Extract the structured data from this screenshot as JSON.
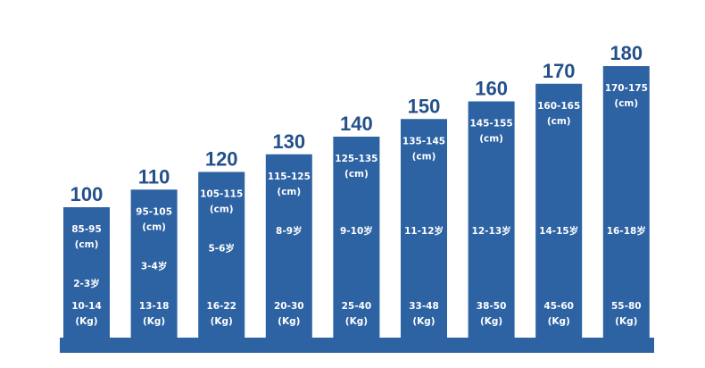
{
  "colors": {
    "bar": "#2d62a3",
    "base": "#2d62a3",
    "label": "#23508b",
    "bar_text": "#ffffff",
    "background": "#ffffff"
  },
  "chart_data": {
    "type": "bar",
    "categories": [
      "100",
      "110",
      "120",
      "130",
      "140",
      "150",
      "160",
      "170",
      "180"
    ],
    "values": [
      100,
      110,
      120,
      130,
      140,
      150,
      160,
      170,
      180
    ],
    "ylim": [
      0,
      180
    ],
    "grid": false,
    "legend": "none",
    "height_range": [
      "85-95",
      "95-105",
      "105-115",
      "115-125",
      "125-135",
      "135-145",
      "145-155",
      "160-165",
      "170-175"
    ],
    "height_unit": "(cm)",
    "age": [
      "2-3岁",
      "3-4岁",
      "5-6岁",
      "8-9岁",
      "9-10岁",
      "11-12岁",
      "12-13岁",
      "14-15岁",
      "16-18岁"
    ],
    "weight_range": [
      "10-14",
      "13-18",
      "16-22",
      "20-30",
      "25-40",
      "33-48",
      "38-50",
      "45-60",
      "55-80"
    ],
    "weight_unit": "(Kg)"
  }
}
